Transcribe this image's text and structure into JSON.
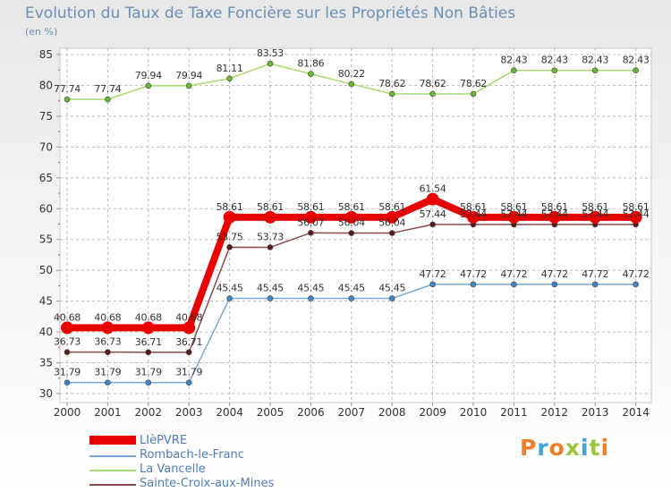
{
  "page": {
    "brand": "Proxiti",
    "brand_colors": [
      "#ee7f28",
      "#40a4d8",
      "#ee7f28",
      "#9bc53d",
      "#40a4d8",
      "#9bc53d",
      "#ee7f28"
    ]
  },
  "chart_data": {
    "type": "line",
    "title": "Evolution du Taux de Taxe Foncière sur les Propriétés Non Bâties",
    "unit_label": "(en %)",
    "xlabel": "",
    "ylabel": "(en %)",
    "ylim": [
      30,
      85
    ],
    "yticks": [
      30,
      35,
      40,
      45,
      50,
      55,
      60,
      65,
      70,
      75,
      80,
      85
    ],
    "categories": [
      "2000",
      "2001",
      "2002",
      "2003",
      "2004",
      "2005",
      "2006",
      "2007",
      "2008",
      "2009",
      "2010",
      "2011",
      "2012",
      "2013",
      "2014"
    ],
    "legend_position": "bottom-left",
    "series": [
      {
        "name": "Rombach-le-Franc",
        "color": "#7aa7d4",
        "marker_color": "#3e86c6",
        "line_width": 1.5,
        "values": [
          31.79,
          31.79,
          31.79,
          31.79,
          45.45,
          45.45,
          45.45,
          45.45,
          45.45,
          47.72,
          47.72,
          47.72,
          47.72,
          47.72,
          47.72
        ],
        "labels": [
          "31.79",
          "31.79",
          "31.79",
          "31.79",
          "45.45",
          "45.45",
          "45.45",
          "45.45",
          "45.45",
          "47.72",
          "47.72",
          "47.72",
          "47.72",
          "47.72",
          "47.72"
        ]
      },
      {
        "name": "La Vancelle",
        "color": "#a8d870",
        "marker_color": "#67b832",
        "line_width": 1.5,
        "values": [
          77.74,
          77.74,
          79.94,
          79.94,
          81.11,
          83.53,
          81.86,
          80.22,
          78.62,
          78.62,
          78.62,
          82.43,
          82.43,
          82.43,
          82.43
        ],
        "labels": [
          "77.74",
          "77.74",
          "79.94",
          "79.94",
          "81.11",
          "83.53",
          "81.86",
          "80.22",
          "78.62",
          "78.62",
          "78.62",
          "82.43",
          "82.43",
          "82.43",
          "82.43"
        ]
      },
      {
        "name": "Sainte-Croix-aux-Mines",
        "color": "#8a4a4a",
        "marker_color": "#5a1b1b",
        "line_width": 1.5,
        "values": [
          36.73,
          36.73,
          36.71,
          36.71,
          53.75,
          53.73,
          56.07,
          56.04,
          56.04,
          57.44,
          57.44,
          57.44,
          57.44,
          57.44,
          57.44
        ],
        "labels": [
          "36.73",
          "36.73",
          "36.71",
          "36.71",
          "53.75",
          "53.73",
          "56.07",
          "56.04",
          "56.04",
          "57.44",
          "57.44",
          "57.44",
          "57.44",
          "57.44",
          "57.44"
        ]
      },
      {
        "name": "LIèPVRE",
        "color": "#e80000",
        "marker_color": "#e80000",
        "line_width": 8,
        "values": [
          40.68,
          40.68,
          40.68,
          40.68,
          58.61,
          58.61,
          58.61,
          58.61,
          58.61,
          61.54,
          58.61,
          58.61,
          58.61,
          58.61,
          58.61
        ],
        "labels": [
          "40.68",
          "40.68",
          "40.68",
          "40.68",
          "58.61",
          "58.61",
          "58.61",
          "58.61",
          "58.61",
          "61.54",
          "58.61",
          "58.61",
          "58.61",
          "58.61",
          "58.61"
        ]
      }
    ],
    "legend_order": [
      3,
      0,
      1,
      2
    ]
  }
}
